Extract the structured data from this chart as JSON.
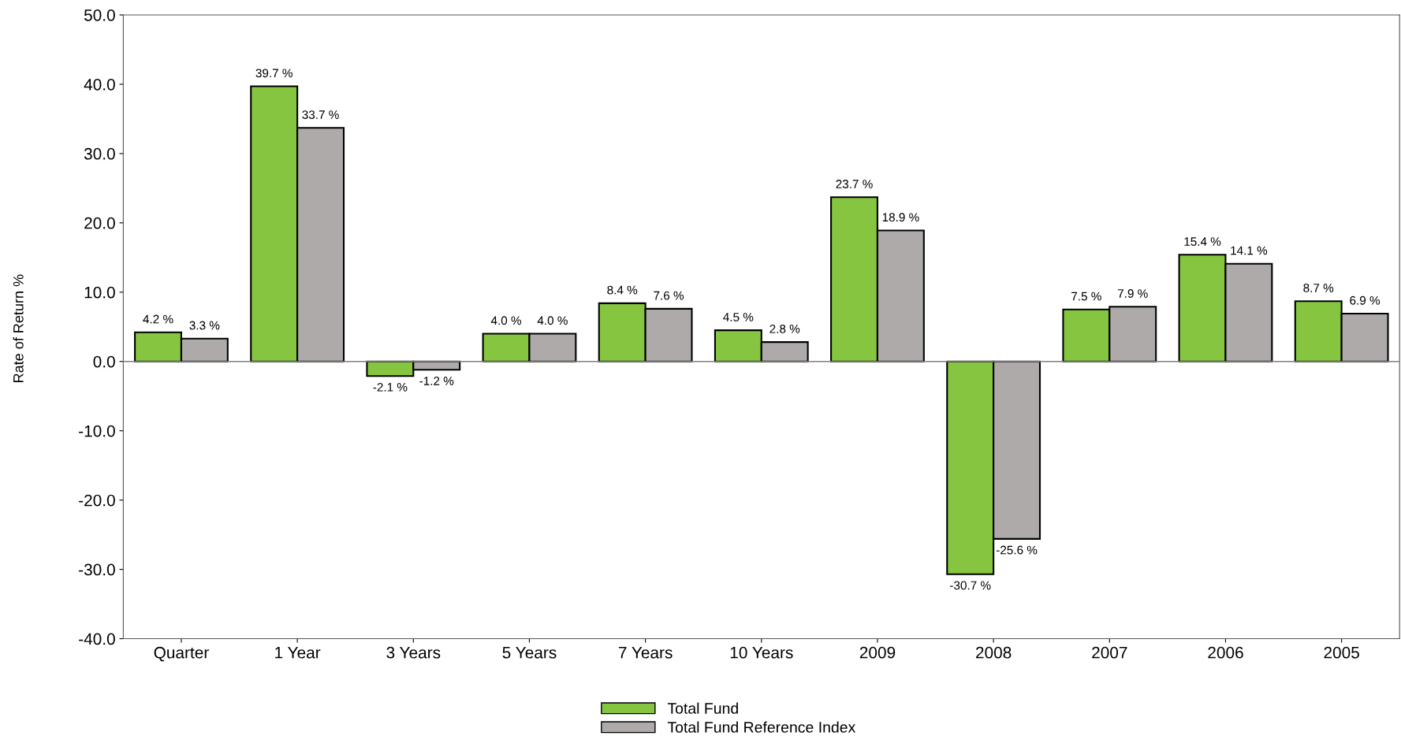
{
  "chart_data": {
    "type": "bar",
    "ylabel": "Rate of Return %",
    "categories": [
      "Quarter",
      "1 Year",
      "3 Years",
      "5 Years",
      "7 Years",
      "10 Years",
      "2009",
      "2008",
      "2007",
      "2006",
      "2005"
    ],
    "series": [
      {
        "name": "Total Fund",
        "color": "#85c540",
        "values": [
          4.2,
          39.7,
          -2.1,
          4.0,
          8.4,
          4.5,
          23.7,
          -30.7,
          7.5,
          15.4,
          8.7
        ],
        "value_labels": [
          "4.2 %",
          "39.7 %",
          "-2.1 %",
          "4.0 %",
          "8.4 %",
          "4.5 %",
          "23.7 %",
          "-30.7 %",
          "7.5 %",
          "15.4 %",
          "8.7 %"
        ]
      },
      {
        "name": "Total Fund Reference Index",
        "color": "#aeaaa9",
        "values": [
          3.3,
          33.7,
          -1.2,
          4.0,
          7.6,
          2.8,
          18.9,
          -25.6,
          7.9,
          14.1,
          6.9
        ],
        "value_labels": [
          "3.3 %",
          "33.7 %",
          "-1.2 %",
          "4.0 %",
          "7.6 %",
          "2.8 %",
          "18.9 %",
          "-25.6 %",
          "7.9 %",
          "14.1 %",
          "6.9 %"
        ]
      }
    ],
    "ylim": [
      -40,
      50
    ],
    "yticks": [
      {
        "value": -40,
        "label": "-40.0"
      },
      {
        "value": -30,
        "label": "-30.0"
      },
      {
        "value": -20,
        "label": "-20.0"
      },
      {
        "value": -10,
        "label": "-10.0"
      },
      {
        "value": 0,
        "label": "0.0"
      },
      {
        "value": 10,
        "label": "10.0"
      },
      {
        "value": 20,
        "label": "20.0"
      },
      {
        "value": 30,
        "label": "30.0"
      },
      {
        "value": 40,
        "label": "40.0"
      },
      {
        "value": 50,
        "label": "50.0"
      }
    ],
    "ref_lines": [
      {
        "axis": "y",
        "value": 0,
        "color": "#808080"
      }
    ],
    "grid": false,
    "legend": "bottom"
  }
}
